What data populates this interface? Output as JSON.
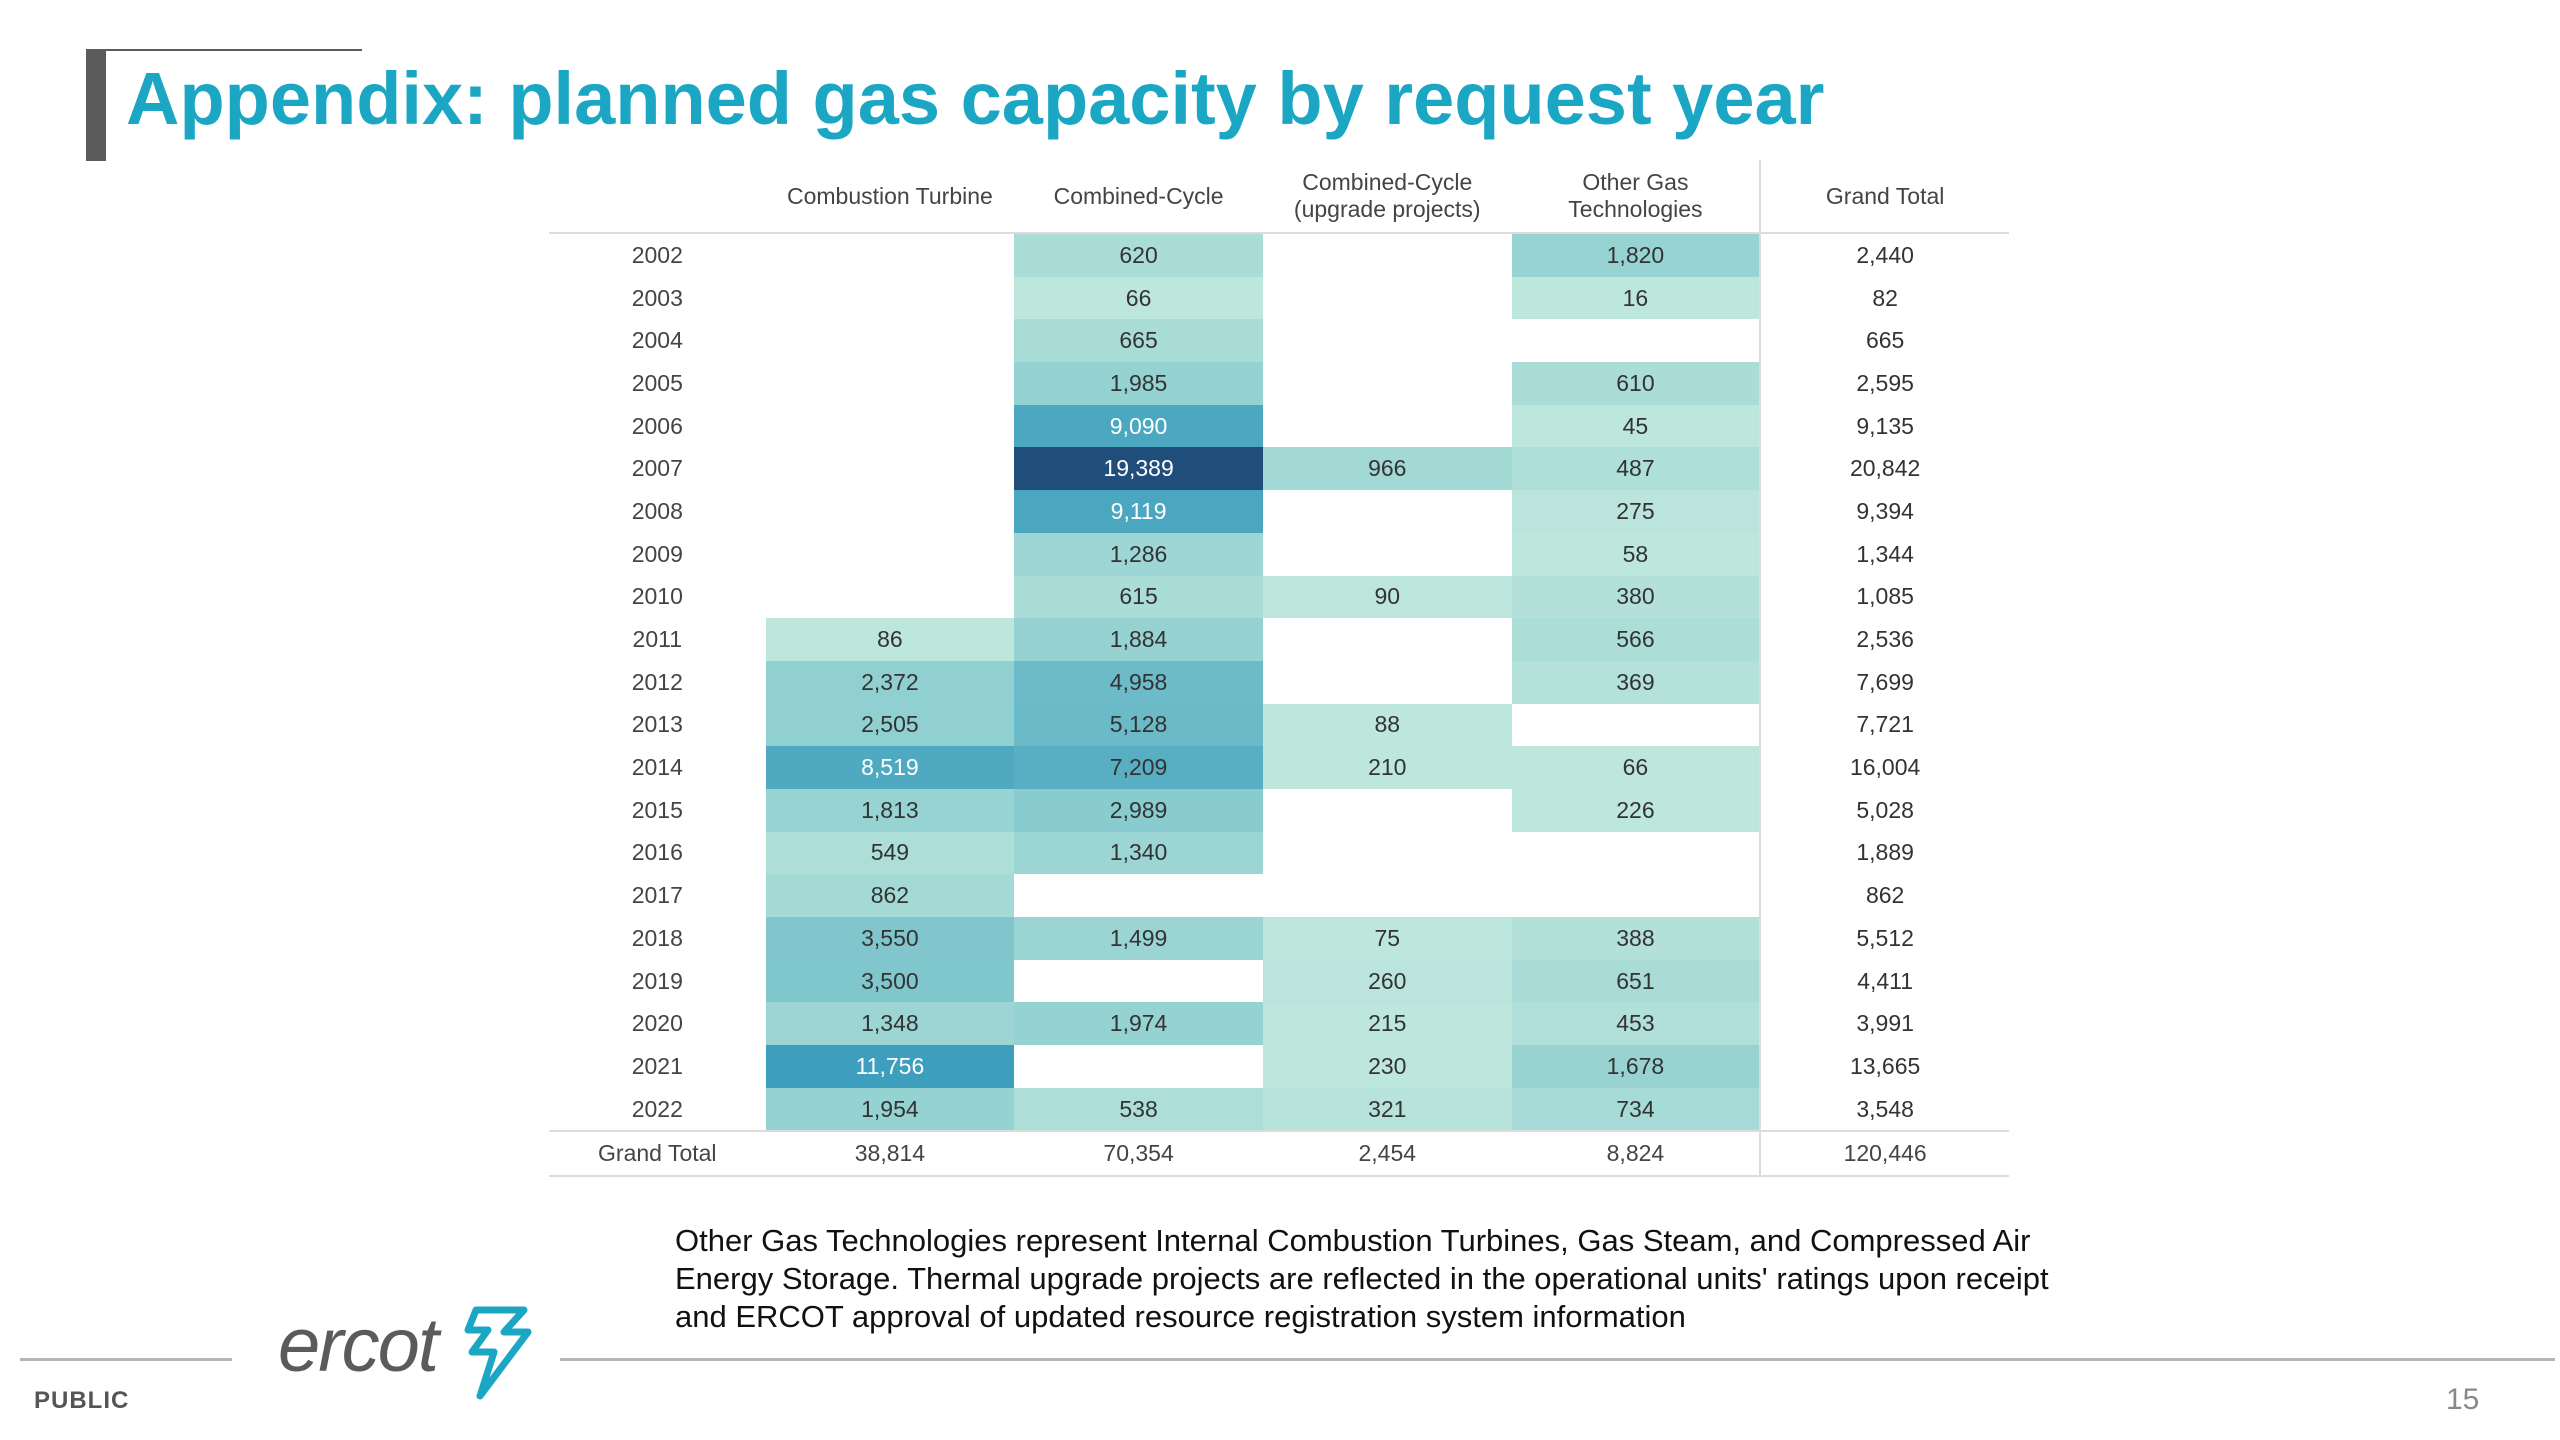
{
  "title": "Appendix: planned gas capacity by request year",
  "table": {
    "headers": [
      "",
      "Combustion Turbine",
      "Combined-Cycle",
      "Combined-Cycle (upgrade projects)",
      "Other Gas Technologies",
      "Grand Total"
    ],
    "rows": [
      {
        "year": "2002",
        "values": [
          "",
          "620",
          "",
          "1,820",
          "2,440"
        ]
      },
      {
        "year": "2003",
        "values": [
          "",
          "66",
          "",
          "16",
          "82"
        ]
      },
      {
        "year": "2004",
        "values": [
          "",
          "665",
          "",
          "",
          "665"
        ]
      },
      {
        "year": "2005",
        "values": [
          "",
          "1,985",
          "",
          "610",
          "2,595"
        ]
      },
      {
        "year": "2006",
        "values": [
          "",
          "9,090",
          "",
          "45",
          "9,135"
        ]
      },
      {
        "year": "2007",
        "values": [
          "",
          "19,389",
          "966",
          "487",
          "20,842"
        ]
      },
      {
        "year": "2008",
        "values": [
          "",
          "9,119",
          "",
          "275",
          "9,394"
        ]
      },
      {
        "year": "2009",
        "values": [
          "",
          "1,286",
          "",
          "58",
          "1,344"
        ]
      },
      {
        "year": "2010",
        "values": [
          "",
          "615",
          "90",
          "380",
          "1,085"
        ]
      },
      {
        "year": "2011",
        "values": [
          "86",
          "1,884",
          "",
          "566",
          "2,536"
        ]
      },
      {
        "year": "2012",
        "values": [
          "2,372",
          "4,958",
          "",
          "369",
          "7,699"
        ]
      },
      {
        "year": "2013",
        "values": [
          "2,505",
          "5,128",
          "88",
          "",
          "7,721"
        ]
      },
      {
        "year": "2014",
        "values": [
          "8,519",
          "7,209",
          "210",
          "66",
          "16,004"
        ]
      },
      {
        "year": "2015",
        "values": [
          "1,813",
          "2,989",
          "",
          "226",
          "5,028"
        ]
      },
      {
        "year": "2016",
        "values": [
          "549",
          "1,340",
          "",
          "",
          "1,889"
        ]
      },
      {
        "year": "2017",
        "values": [
          "862",
          "",
          "",
          "",
          "862"
        ]
      },
      {
        "year": "2018",
        "values": [
          "3,550",
          "1,499",
          "75",
          "388",
          "5,512"
        ]
      },
      {
        "year": "2019",
        "values": [
          "3,500",
          "",
          "260",
          "651",
          "4,411"
        ]
      },
      {
        "year": "2020",
        "values": [
          "1,348",
          "1,974",
          "215",
          "453",
          "3,991"
        ]
      },
      {
        "year": "2021",
        "values": [
          "11,756",
          "",
          "230",
          "1,678",
          "13,665"
        ]
      },
      {
        "year": "2022",
        "values": [
          "1,954",
          "538",
          "321",
          "734",
          "3,548"
        ]
      }
    ],
    "total_row": {
      "label": "Grand Total",
      "values": [
        "38,814",
        "70,354",
        "2,454",
        "8,824",
        "120,446"
      ]
    }
  },
  "heat_colors": {
    "low": "#bde6dd",
    "mid": "#8fcfd0",
    "high": "#3d9fbd",
    "max": "#1f4e7a"
  },
  "note": "Other Gas Technologies represent Internal Combustion Turbines, Gas Steam, and Compressed Air Energy Storage. Thermal upgrade projects are reflected in the operational units' ratings upon receipt and ERCOT approval of updated resource registration system information",
  "footer": {
    "classification": "PUBLIC",
    "logo_text": "ercot",
    "page_number": "15"
  }
}
